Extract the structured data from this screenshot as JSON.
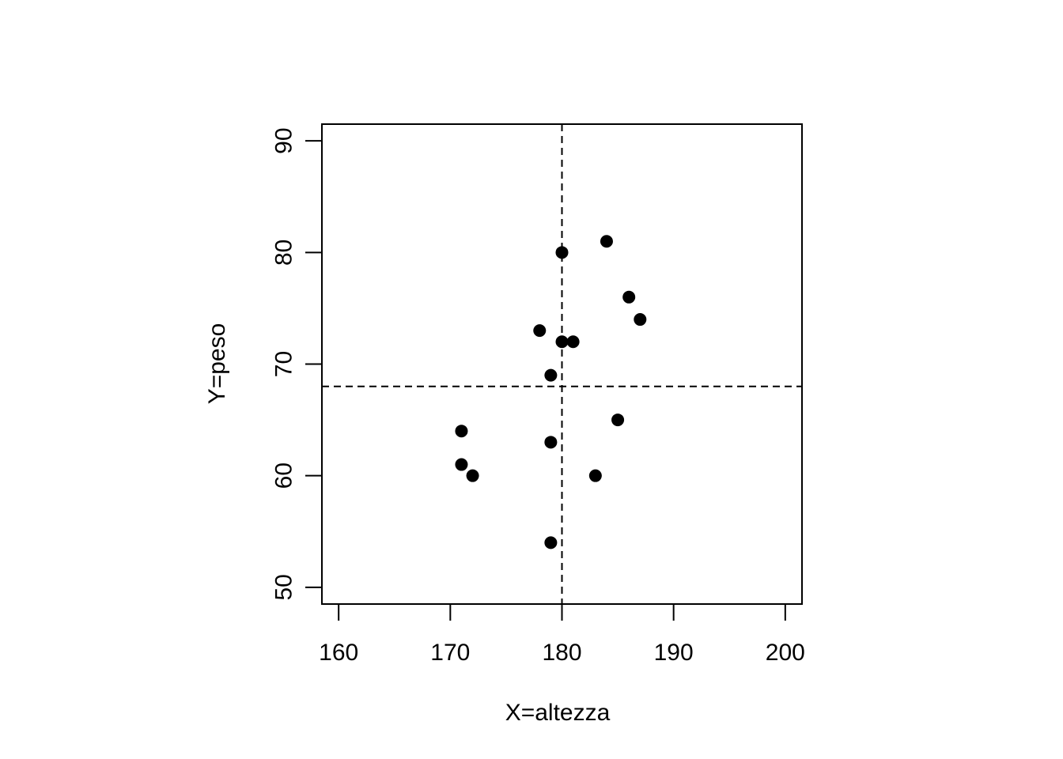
{
  "chart_data": {
    "type": "scatter",
    "title": "",
    "xlabel": "X=altezza",
    "ylabel": "Y=peso",
    "xlim": [
      158.5,
      201.5
    ],
    "ylim": [
      48.5,
      91.5
    ],
    "x_ticks": [
      160,
      170,
      180,
      190,
      200
    ],
    "y_ticks": [
      50,
      60,
      70,
      80,
      90
    ],
    "x_tick_labels": [
      "160",
      "170",
      "180",
      "190",
      "200"
    ],
    "y_tick_labels": [
      "50",
      "60",
      "70",
      "80",
      "90"
    ],
    "grid": false,
    "reference_lines": {
      "vertical_x": 180,
      "horizontal_y": 68
    },
    "point_color": "#000000",
    "points": [
      {
        "x": 171,
        "y": 64
      },
      {
        "x": 171,
        "y": 61
      },
      {
        "x": 172,
        "y": 60
      },
      {
        "x": 178,
        "y": 73
      },
      {
        "x": 179,
        "y": 69
      },
      {
        "x": 179,
        "y": 63
      },
      {
        "x": 179,
        "y": 54
      },
      {
        "x": 180,
        "y": 80
      },
      {
        "x": 180,
        "y": 72
      },
      {
        "x": 181,
        "y": 72
      },
      {
        "x": 183,
        "y": 60
      },
      {
        "x": 184,
        "y": 81
      },
      {
        "x": 185,
        "y": 65
      },
      {
        "x": 186,
        "y": 76
      },
      {
        "x": 187,
        "y": 74
      }
    ]
  }
}
